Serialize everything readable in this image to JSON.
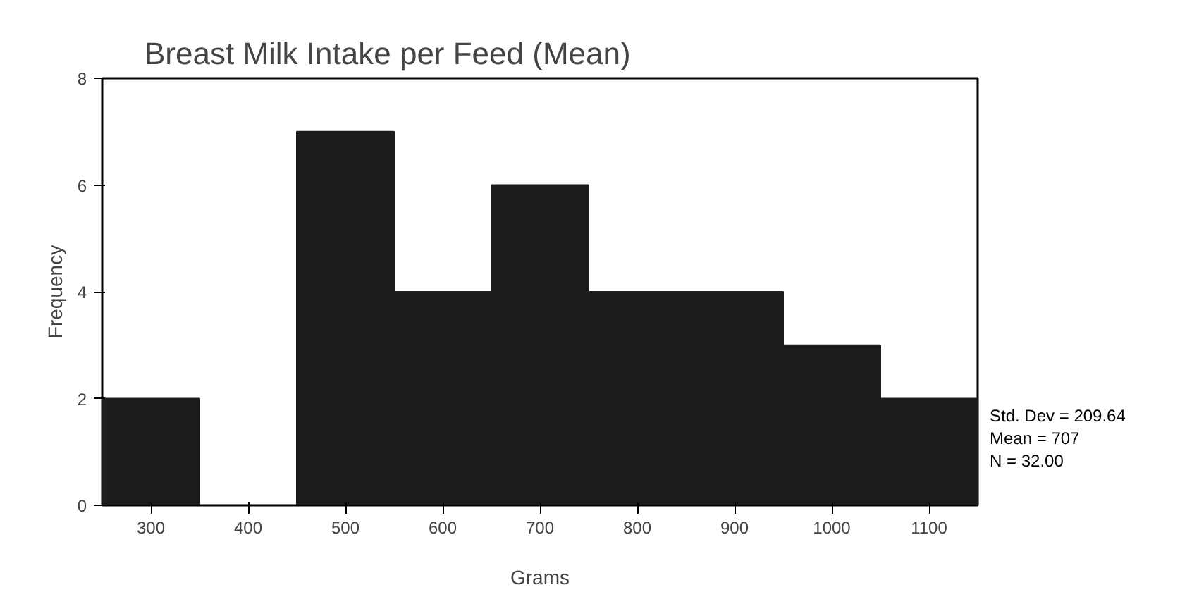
{
  "chart_data": {
    "type": "histogram",
    "title": "Breast Milk Intake per Feed (Mean)",
    "xlabel": "Grams",
    "ylabel": "Frequency",
    "bins": [
      250,
      350,
      450,
      550,
      650,
      750,
      850,
      950,
      1050,
      1150
    ],
    "values": [
      2,
      0,
      7,
      4,
      6,
      4,
      4,
      3,
      2
    ],
    "color": "#1c1c1c",
    "xlim": [
      250,
      1150
    ],
    "xticks": [
      300,
      400,
      500,
      600,
      700,
      800,
      900,
      1000,
      1100
    ],
    "ylim": [
      0,
      8
    ],
    "yticks": [
      0,
      2,
      4,
      6,
      8
    ],
    "grid": false,
    "annotations": [
      "Std. Dev = 209.64",
      "Mean = 707",
      "N = 32.00"
    ]
  }
}
